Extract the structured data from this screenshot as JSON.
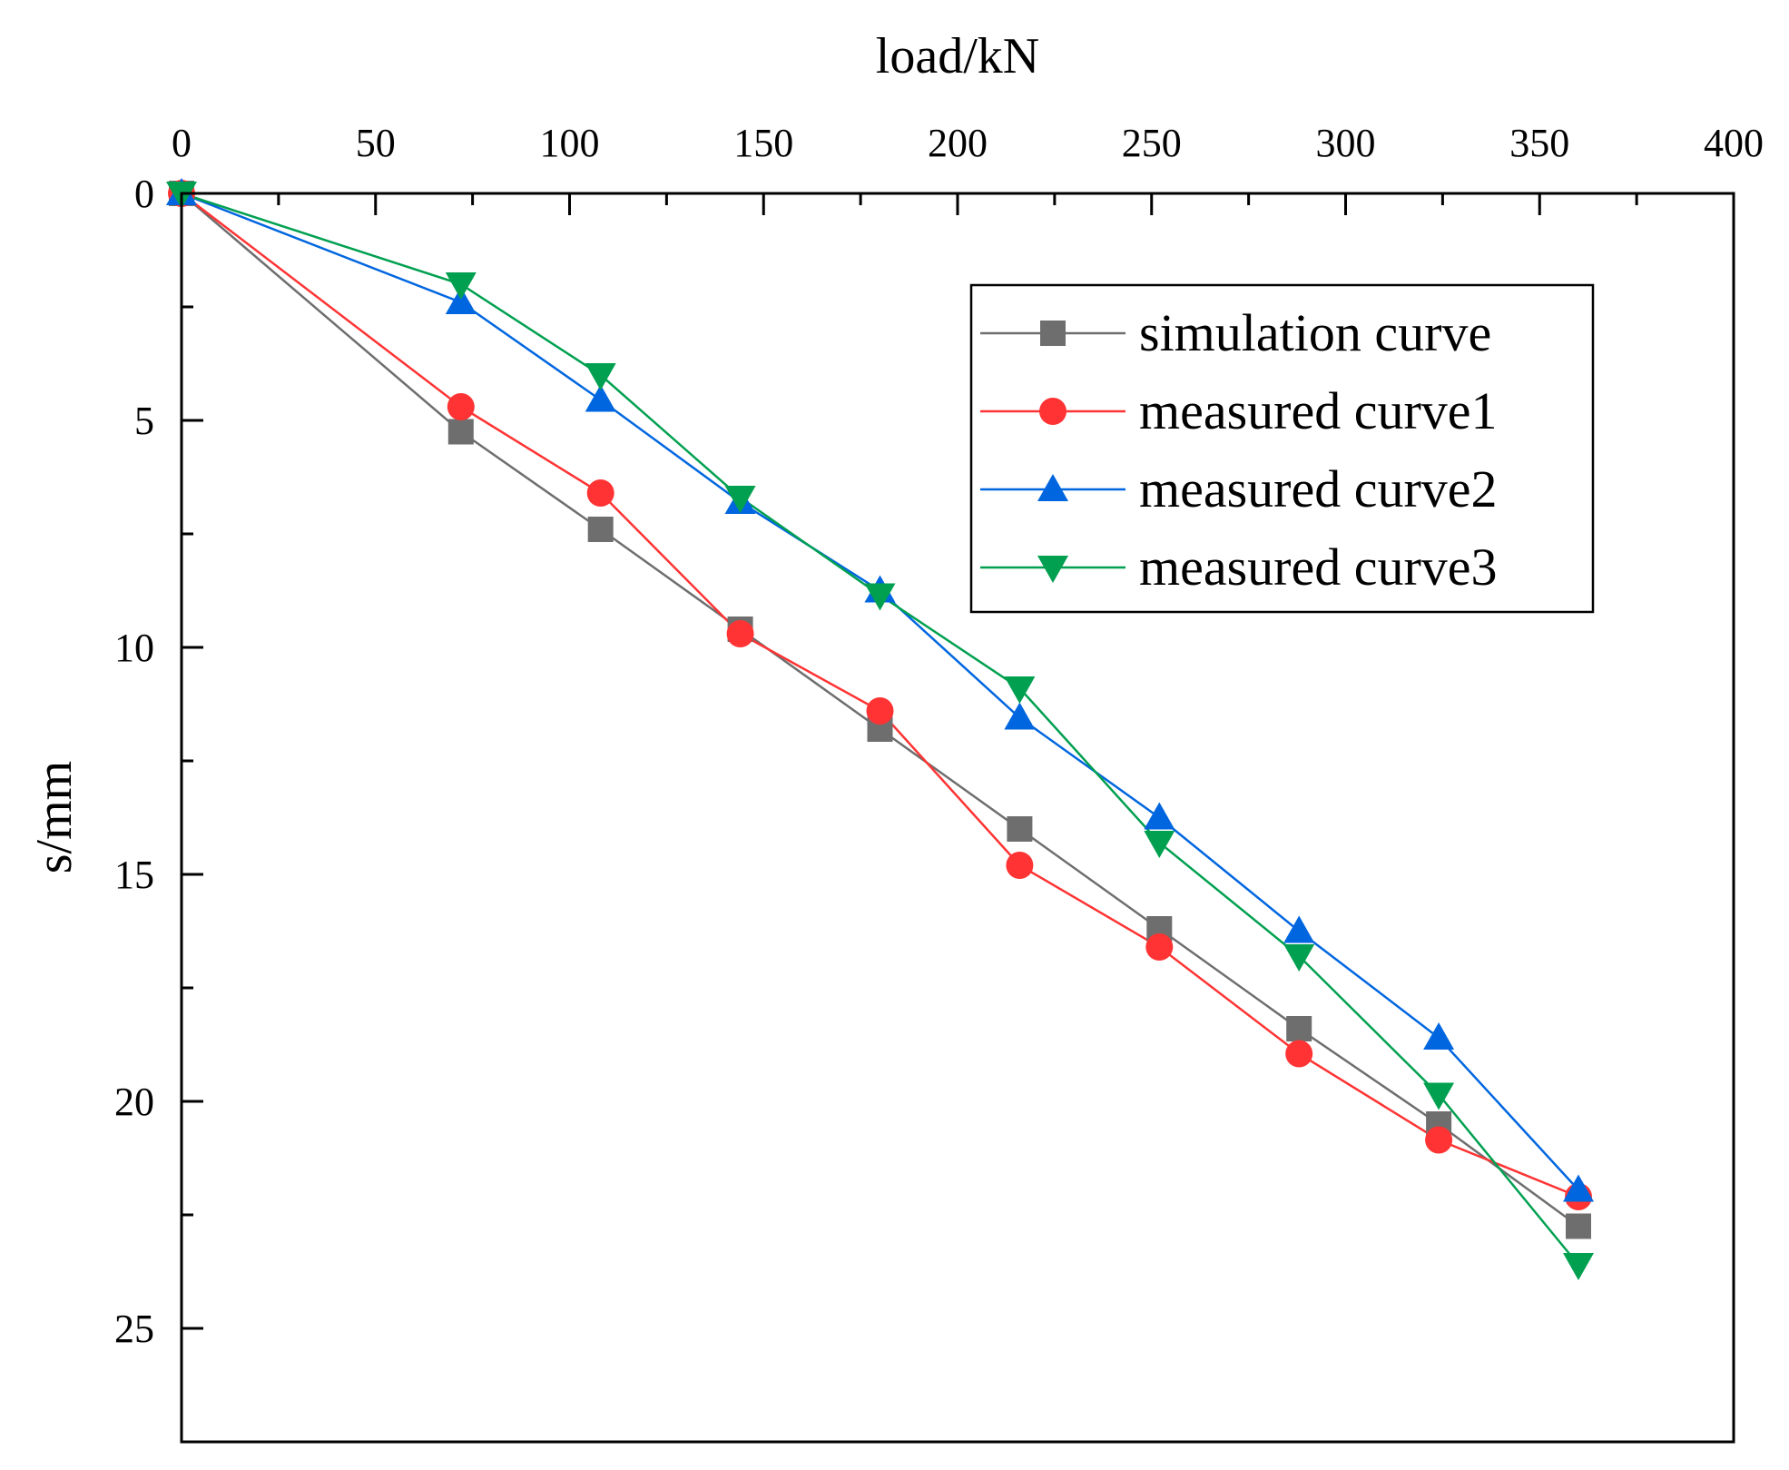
{
  "chart_data": {
    "type": "line",
    "xlabel": "load/kN",
    "ylabel": "s/mm",
    "xlim": [
      0,
      400
    ],
    "ylim": [
      0,
      27.5
    ],
    "y_inverted": true,
    "x_axis_position": "top",
    "x_ticks": [
      0,
      50,
      100,
      150,
      200,
      250,
      300,
      350,
      400
    ],
    "x_tick_labels": [
      "0",
      "50",
      "100",
      "150",
      "200",
      "250",
      "300",
      "350",
      "400"
    ],
    "y_ticks": [
      0,
      5,
      10,
      15,
      20,
      25
    ],
    "y_tick_labels": [
      "0",
      "5",
      "10",
      "15",
      "20",
      "25"
    ],
    "grid": false,
    "legend_position": "top-right",
    "x": [
      0,
      72,
      108,
      144,
      180,
      216,
      252,
      288,
      324,
      360
    ],
    "series": [
      {
        "name": "simulation curve",
        "marker": "square",
        "color": "#6e6e6e",
        "values": [
          0,
          5.25,
          7.4,
          9.6,
          11.8,
          14.0,
          16.2,
          18.4,
          20.5,
          22.75
        ]
      },
      {
        "name": "measured curve1",
        "marker": "circle",
        "color": "#ff3333",
        "values": [
          0,
          4.7,
          6.6,
          9.7,
          11.4,
          14.8,
          16.6,
          18.95,
          20.85,
          22.1
        ]
      },
      {
        "name": "measured curve2",
        "marker": "triangle-up",
        "color": "#0066e0",
        "values": [
          0,
          2.4,
          4.55,
          6.8,
          8.75,
          11.55,
          13.75,
          16.25,
          18.6,
          21.95
        ]
      },
      {
        "name": "measured curve3",
        "marker": "triangle-down",
        "color": "#00a050",
        "values": [
          0,
          2.0,
          4.0,
          6.7,
          8.85,
          10.9,
          14.3,
          16.8,
          19.85,
          23.6
        ]
      }
    ]
  }
}
